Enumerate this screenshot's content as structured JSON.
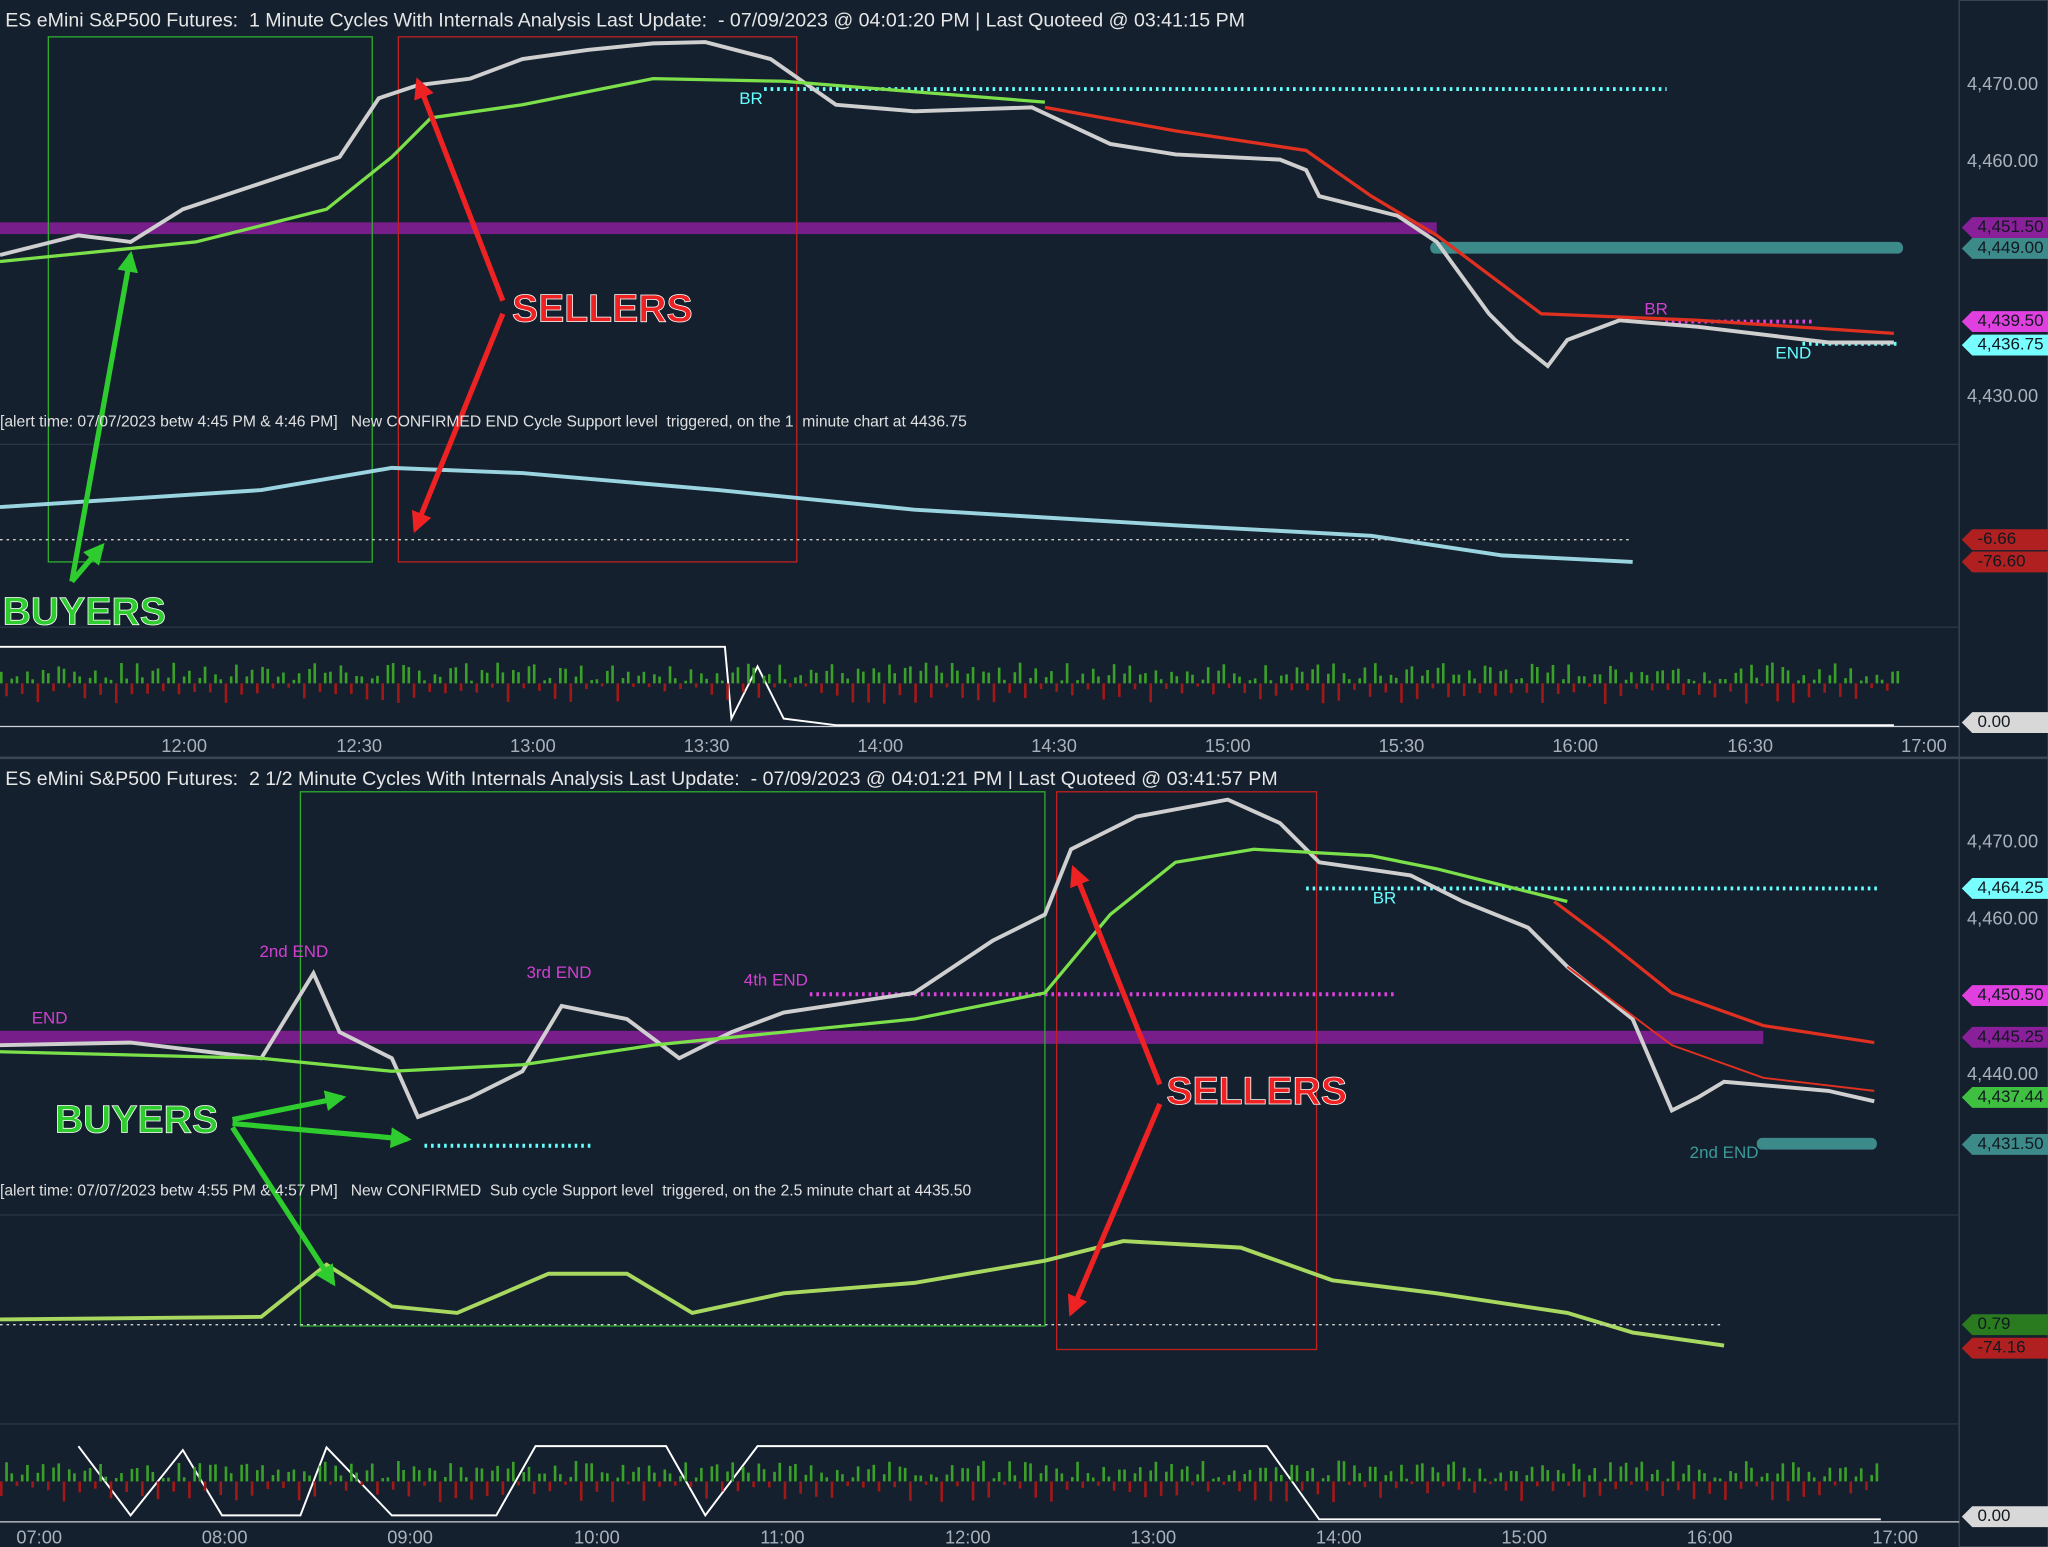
{
  "top_chart": {
    "title": "ES eMini S&P500 Futures:  1 Minute Cycles With Internals Analysis Last Update:  - 07/09/2023 @ 04:01:20 PM | Last Quoteed @ 03:41:15 PM",
    "price_axis": [
      "4,470.00",
      "4,460.00",
      "4,430.00"
    ],
    "price_tags": [
      "4,451.50",
      "4,449.00",
      "4,439.50",
      "4,436.75",
      "-6.66",
      "-76.60",
      "0.00"
    ],
    "time_axis": [
      "12:00",
      "12:30",
      "13:00",
      "13:30",
      "14:00",
      "14:30",
      "15:00",
      "15:30",
      "16:00",
      "16:30",
      "17:00"
    ],
    "alert": "[alert time: 07/07/2023 betw 4:45 PM & 4:46 PM]   New CONFIRMED END Cycle Support level  triggered, on the 1  minute chart at 4436.75",
    "labels": [
      "BR",
      "BR",
      "END"
    ],
    "annotations": [
      "SELLERS",
      "BUYERS"
    ]
  },
  "bottom_chart": {
    "title": "ES eMini S&P500 Futures:  2 1/2 Minute Cycles With Internals Analysis Last Update:  - 07/09/2023 @ 04:01:21 PM | Last Quoteed @ 03:41:57 PM",
    "price_axis": [
      "4,470.00",
      "4,460.00",
      "4,440.00"
    ],
    "price_tags": [
      "4,464.25",
      "4,450.50",
      "4,445.25",
      "4,437.44",
      "4,431.50",
      "0.79",
      "-74.16",
      "0.00"
    ],
    "time_axis": [
      "07:00",
      "08:00",
      "09:00",
      "10:00",
      "11:00",
      "12:00",
      "13:00",
      "14:00",
      "15:00",
      "16:00",
      "17:00"
    ],
    "alert": "[alert time: 07/07/2023 betw 4:55 PM & 4:57 PM]   New CONFIRMED  Sub cycle Support level  triggered, on the 2.5 minute chart at 4435.50",
    "labels": [
      "END",
      "2nd END",
      "3rd END",
      "4th END",
      "BR",
      "2nd END"
    ],
    "annotations": [
      "SELLERS",
      "BUYERS"
    ]
  }
}
